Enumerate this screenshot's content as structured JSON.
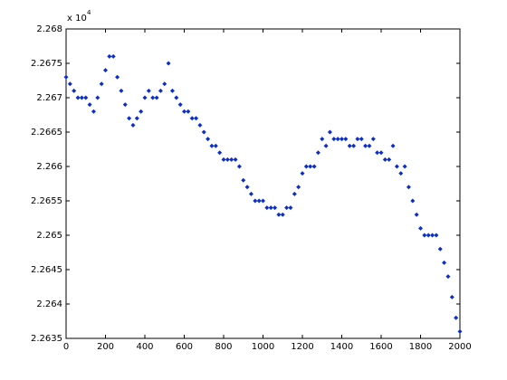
{
  "chart_data": {
    "type": "scatter",
    "exponent_base": "x 10",
    "exponent": "4",
    "x": [
      0,
      20,
      40,
      60,
      80,
      100,
      120,
      140,
      160,
      180,
      200,
      220,
      240,
      260,
      280,
      300,
      320,
      340,
      360,
      380,
      400,
      420,
      440,
      460,
      480,
      500,
      520,
      540,
      560,
      580,
      600,
      620,
      640,
      660,
      680,
      700,
      720,
      740,
      760,
      780,
      800,
      820,
      840,
      860,
      880,
      900,
      920,
      940,
      960,
      980,
      1000,
      1020,
      1040,
      1060,
      1080,
      1100,
      1120,
      1140,
      1160,
      1180,
      1200,
      1220,
      1240,
      1260,
      1280,
      1300,
      1320,
      1340,
      1360,
      1380,
      1400,
      1420,
      1440,
      1460,
      1480,
      1500,
      1520,
      1540,
      1560,
      1580,
      1600,
      1620,
      1640,
      1660,
      1680,
      1700,
      1720,
      1740,
      1760,
      1780,
      1800,
      1820,
      1840,
      1860,
      1880,
      1900,
      1920,
      1940,
      1960,
      1980,
      2000
    ],
    "series": [
      {
        "color": "#0a2ecc",
        "values": [
          2.2673,
          2.2672,
          2.2671,
          2.267,
          2.267,
          2.267,
          2.2669,
          2.2668,
          2.267,
          2.2672,
          2.2674,
          2.2676,
          2.2676,
          2.2673,
          2.2671,
          2.2669,
          2.2667,
          2.2666,
          2.2667,
          2.2668,
          2.267,
          2.2671,
          2.267,
          2.267,
          2.2671,
          2.2672,
          2.2675,
          2.2671,
          2.267,
          2.2669,
          2.2668,
          2.2668,
          2.2667,
          2.2667,
          2.2666,
          2.2665,
          2.2664,
          2.2663,
          2.2663,
          2.2662,
          2.2661,
          2.2661,
          2.2661,
          2.2661,
          2.266,
          2.2658,
          2.2657,
          2.2656,
          2.2655,
          2.2655,
          2.2655,
          2.2654,
          2.2654,
          2.2654,
          2.2653,
          2.2653,
          2.2654,
          2.2654,
          2.2656,
          2.2657,
          2.2659,
          2.266,
          2.266,
          2.266,
          2.2662,
          2.2664,
          2.2663,
          2.2665,
          2.2664,
          2.2664,
          2.2664,
          2.2664,
          2.2663,
          2.2663,
          2.2664,
          2.2664,
          2.2663,
          2.2663,
          2.2664,
          2.2662,
          2.2662,
          2.2661,
          2.2661,
          2.2663,
          2.266,
          2.2659,
          2.266,
          2.2657,
          2.2655,
          2.2653,
          2.2651,
          2.265,
          2.265,
          2.265,
          2.265,
          2.2648,
          2.2646,
          2.2644,
          2.2641,
          2.2638,
          2.2636
        ]
      }
    ],
    "xlim": [
      0,
      2000
    ],
    "xticks": [
      0,
      200,
      400,
      600,
      800,
      1000,
      1200,
      1400,
      1600,
      1800,
      2000
    ],
    "ylim": [
      2.2635,
      2.268
    ],
    "yticks": [
      2.2635,
      2.264,
      2.2645,
      2.265,
      2.2655,
      2.266,
      2.2665,
      2.267,
      2.2675,
      2.268
    ]
  }
}
